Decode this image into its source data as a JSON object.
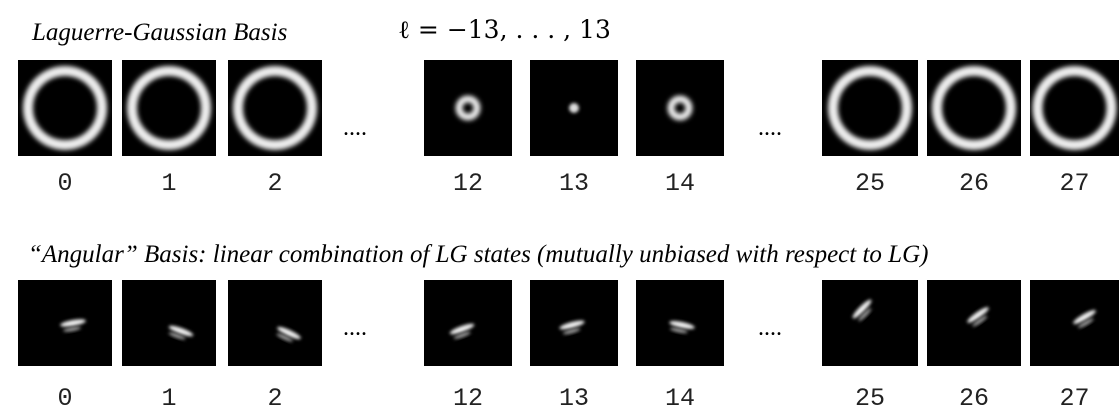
{
  "top": {
    "title": "Laguerre-Gaussian Basis",
    "formula": "ℓ = −13, . . . , 13",
    "labels": [
      "0",
      "1",
      "2",
      "12",
      "13",
      "14",
      "25",
      "26",
      "27"
    ],
    "ellipses": [
      "....",
      "...."
    ]
  },
  "bottom": {
    "title": "“Angular” Basis: linear combination of LG states (mutually unbiased with respect to LG)",
    "labels": [
      "0",
      "1",
      "2",
      "12",
      "13",
      "14",
      "25",
      "26",
      "27"
    ],
    "ellipses": [
      "....",
      "...."
    ]
  }
}
